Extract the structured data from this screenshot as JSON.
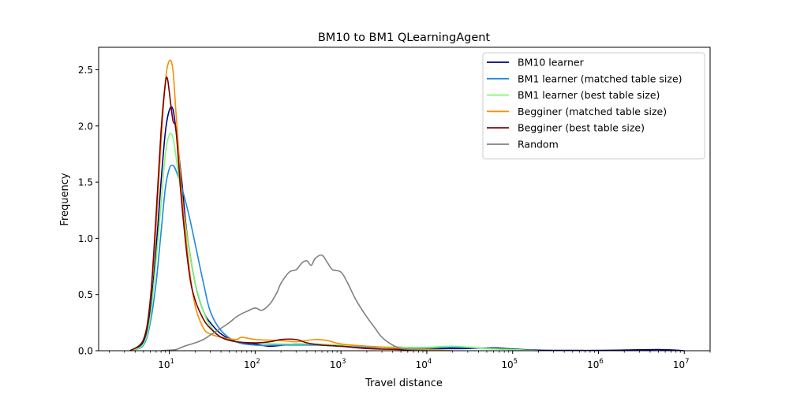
{
  "chart_data": {
    "type": "line",
    "title": "BM10 to BM1 QLearningAgent",
    "xlabel": "Travel distance",
    "ylabel": "Frequency",
    "xscale": "log",
    "xlim": [
      1.5,
      20000000
    ],
    "ylim": [
      0,
      2.7
    ],
    "xticks": [
      {
        "value": 10,
        "base": "10",
        "exp": "1"
      },
      {
        "value": 100,
        "base": "10",
        "exp": "2"
      },
      {
        "value": 1000,
        "base": "10",
        "exp": "3"
      },
      {
        "value": 10000,
        "base": "10",
        "exp": "4"
      },
      {
        "value": 100000,
        "base": "10",
        "exp": "5"
      },
      {
        "value": 1000000,
        "base": "10",
        "exp": "6"
      },
      {
        "value": 10000000,
        "base": "10",
        "exp": "7"
      }
    ],
    "yticks": [
      {
        "value": 0,
        "label": "0.0"
      },
      {
        "value": 0.5,
        "label": "0.5"
      },
      {
        "value": 1.0,
        "label": "1.0"
      },
      {
        "value": 1.5,
        "label": "1.5"
      },
      {
        "value": 2.0,
        "label": "2.0"
      },
      {
        "value": 2.5,
        "label": "2.5"
      }
    ],
    "legend_position": "top-right",
    "grid": false,
    "series": [
      {
        "name": "BM10 learner",
        "color": "#000080",
        "points": [
          [
            3.5,
            0
          ],
          [
            5,
            0.08
          ],
          [
            6,
            0.35
          ],
          [
            7,
            0.9
          ],
          [
            8,
            1.5
          ],
          [
            9,
            1.95
          ],
          [
            10,
            2.14
          ],
          [
            11,
            2.15
          ],
          [
            12,
            1.95
          ],
          [
            14,
            1.5
          ],
          [
            16,
            1.05
          ],
          [
            20,
            0.6
          ],
          [
            25,
            0.35
          ],
          [
            30,
            0.25
          ],
          [
            40,
            0.15
          ],
          [
            60,
            0.08
          ],
          [
            100,
            0.06
          ],
          [
            150,
            0.04
          ],
          [
            300,
            0.06
          ],
          [
            600,
            0.05
          ],
          [
            1000,
            0.04
          ],
          [
            2000,
            0.03
          ],
          [
            5000,
            0.03
          ],
          [
            10000,
            0.02
          ],
          [
            30000,
            0.02
          ],
          [
            60000,
            0.025
          ],
          [
            100000,
            0.015
          ],
          [
            200000,
            0.005
          ],
          [
            500000,
            0.003
          ],
          [
            1000000,
            0.003
          ],
          [
            3000000,
            0.008
          ],
          [
            5000000,
            0.01
          ],
          [
            8000000,
            0.005
          ],
          [
            10000000,
            0
          ]
        ]
      },
      {
        "name": "BM1 learner (matched table size)",
        "color": "#1e88e5",
        "points": [
          [
            3.5,
            0
          ],
          [
            5,
            0.05
          ],
          [
            6,
            0.25
          ],
          [
            7,
            0.6
          ],
          [
            8,
            1.05
          ],
          [
            9,
            1.45
          ],
          [
            10,
            1.62
          ],
          [
            11,
            1.65
          ],
          [
            12,
            1.6
          ],
          [
            14,
            1.45
          ],
          [
            17,
            1.2
          ],
          [
            20,
            0.95
          ],
          [
            25,
            0.6
          ],
          [
            30,
            0.35
          ],
          [
            40,
            0.18
          ],
          [
            60,
            0.08
          ],
          [
            100,
            0.05
          ],
          [
            200,
            0.05
          ],
          [
            500,
            0.05
          ],
          [
            1000,
            0.04
          ],
          [
            2000,
            0.03
          ],
          [
            5000,
            0.03
          ],
          [
            7000,
            0.02
          ],
          [
            10000,
            0.02
          ],
          [
            20000,
            0.03
          ],
          [
            50000,
            0.02
          ],
          [
            100000,
            0.01
          ],
          [
            200000,
            0
          ]
        ]
      },
      {
        "name": "BM1 learner (best table size)",
        "color": "#7cfc6e",
        "points": [
          [
            3.5,
            0
          ],
          [
            5,
            0.06
          ],
          [
            6,
            0.3
          ],
          [
            7,
            0.8
          ],
          [
            8,
            1.3
          ],
          [
            9,
            1.75
          ],
          [
            10,
            1.92
          ],
          [
            11,
            1.9
          ],
          [
            12,
            1.72
          ],
          [
            14,
            1.35
          ],
          [
            17,
            0.9
          ],
          [
            20,
            0.6
          ],
          [
            25,
            0.35
          ],
          [
            30,
            0.22
          ],
          [
            40,
            0.12
          ],
          [
            60,
            0.08
          ],
          [
            100,
            0.07
          ],
          [
            200,
            0.06
          ],
          [
            500,
            0.06
          ],
          [
            1000,
            0.05
          ],
          [
            2000,
            0.04
          ],
          [
            5000,
            0.03
          ],
          [
            10000,
            0.03
          ],
          [
            20000,
            0.04
          ],
          [
            50000,
            0.02
          ],
          [
            100000,
            0.01
          ],
          [
            200000,
            0
          ]
        ]
      },
      {
        "name": "Begginer (matched table size)",
        "color": "#ff8c00",
        "points": [
          [
            3.5,
            0
          ],
          [
            5,
            0.1
          ],
          [
            6,
            0.45
          ],
          [
            7,
            1.1
          ],
          [
            8,
            1.85
          ],
          [
            9,
            2.4
          ],
          [
            10,
            2.58
          ],
          [
            11,
            2.5
          ],
          [
            12,
            2.1
          ],
          [
            14,
            1.4
          ],
          [
            17,
            0.75
          ],
          [
            20,
            0.4
          ],
          [
            25,
            0.2
          ],
          [
            30,
            0.15
          ],
          [
            40,
            0.12
          ],
          [
            60,
            0.1
          ],
          [
            70,
            0.12
          ],
          [
            100,
            0.1
          ],
          [
            200,
            0.09
          ],
          [
            300,
            0.08
          ],
          [
            500,
            0.1
          ],
          [
            700,
            0.09
          ],
          [
            1000,
            0.06
          ],
          [
            2000,
            0.04
          ],
          [
            5000,
            0.02
          ],
          [
            10000,
            0.01
          ],
          [
            20000,
            0
          ]
        ]
      },
      {
        "name": "Begginer (best table size)",
        "color": "#7a0000",
        "points": [
          [
            3.5,
            0
          ],
          [
            5,
            0.1
          ],
          [
            6,
            0.45
          ],
          [
            7,
            1.2
          ],
          [
            8,
            1.95
          ],
          [
            9,
            2.38
          ],
          [
            9.5,
            2.42
          ],
          [
            10,
            2.3
          ],
          [
            11,
            2.05
          ],
          [
            12,
            1.95
          ],
          [
            14,
            1.3
          ],
          [
            17,
            0.7
          ],
          [
            20,
            0.45
          ],
          [
            25,
            0.28
          ],
          [
            30,
            0.2
          ],
          [
            40,
            0.12
          ],
          [
            60,
            0.08
          ],
          [
            100,
            0.07
          ],
          [
            150,
            0.08
          ],
          [
            200,
            0.1
          ],
          [
            300,
            0.1
          ],
          [
            400,
            0.07
          ],
          [
            600,
            0.05
          ],
          [
            1000,
            0.04
          ],
          [
            2000,
            0.02
          ],
          [
            5000,
            0.01
          ],
          [
            10000,
            0
          ]
        ]
      },
      {
        "name": "Random",
        "color": "#808080",
        "points": [
          [
            8,
            0
          ],
          [
            10,
            0.005
          ],
          [
            12,
            0.01
          ],
          [
            15,
            0.04
          ],
          [
            20,
            0.07
          ],
          [
            25,
            0.1
          ],
          [
            30,
            0.14
          ],
          [
            40,
            0.2
          ],
          [
            50,
            0.25
          ],
          [
            60,
            0.3
          ],
          [
            70,
            0.33
          ],
          [
            80,
            0.35
          ],
          [
            100,
            0.38
          ],
          [
            120,
            0.36
          ],
          [
            150,
            0.42
          ],
          [
            180,
            0.52
          ],
          [
            200,
            0.6
          ],
          [
            250,
            0.7
          ],
          [
            300,
            0.72
          ],
          [
            350,
            0.78
          ],
          [
            400,
            0.8
          ],
          [
            450,
            0.76
          ],
          [
            500,
            0.82
          ],
          [
            600,
            0.85
          ],
          [
            700,
            0.78
          ],
          [
            800,
            0.72
          ],
          [
            1000,
            0.7
          ],
          [
            1200,
            0.6
          ],
          [
            1500,
            0.45
          ],
          [
            2000,
            0.3
          ],
          [
            2500,
            0.2
          ],
          [
            3000,
            0.12
          ],
          [
            4000,
            0.05
          ],
          [
            5000,
            0.02
          ],
          [
            7000,
            0.01
          ],
          [
            10000,
            0
          ]
        ]
      }
    ]
  }
}
